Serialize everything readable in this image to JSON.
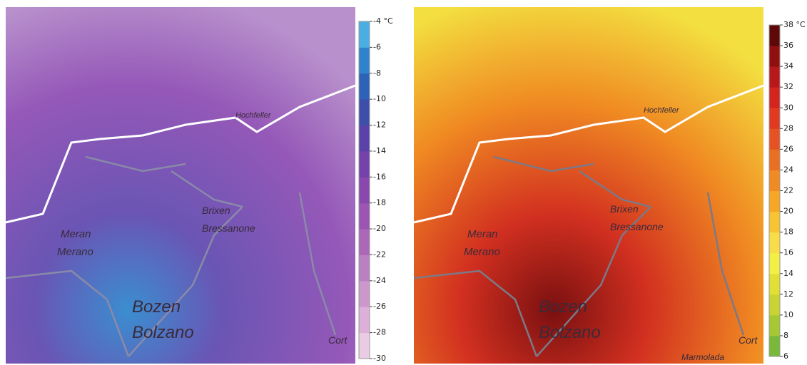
{
  "maps": [
    {
      "labels": [
        "Hochfeller",
        "Brixen",
        "Bressanone",
        "Meran",
        "Merano",
        "Bozen",
        "Bolzano",
        "Cort"
      ],
      "colorbar": {
        "range": [
          -30,
          -4
        ],
        "ticks": [
          {
            "value": -4,
            "label": "-4 °C"
          },
          -6,
          -8,
          -10,
          -12,
          -14,
          -16,
          -18,
          -20,
          -22,
          -24,
          -26,
          -28,
          -30
        ],
        "colors": [
          "#e9cbe3",
          "#dcb0d8",
          "#cc98cc",
          "#bb80c2",
          "#ab68b9",
          "#9c55b2",
          "#8a48ae",
          "#7442aa",
          "#5a42aa",
          "#3e4fab",
          "#2c62b8",
          "#2f82cc",
          "#4aaee2"
        ]
      }
    },
    {
      "labels": [
        "Hochfeller",
        "Brixen",
        "Bressanone",
        "Meran",
        "Merano",
        "Bozen",
        "Bolzano",
        "Marmolada",
        "Cort"
      ],
      "colorbar": {
        "range": [
          6,
          38
        ],
        "ticks": [
          {
            "value": 38,
            "label": "38 °C"
          },
          36,
          34,
          32,
          30,
          28,
          26,
          24,
          22,
          20,
          18,
          16,
          14,
          12,
          10,
          8,
          6
        ],
        "colors": [
          "#7ab83a",
          "#a6c832",
          "#c9d332",
          "#e2e034",
          "#f3ef45",
          "#f8dc48",
          "#f8c432",
          "#f7a726",
          "#f08a22",
          "#e97023",
          "#e65224",
          "#e03a22",
          "#d42420",
          "#b8181a",
          "#901010",
          "#5e0808"
        ]
      }
    }
  ]
}
